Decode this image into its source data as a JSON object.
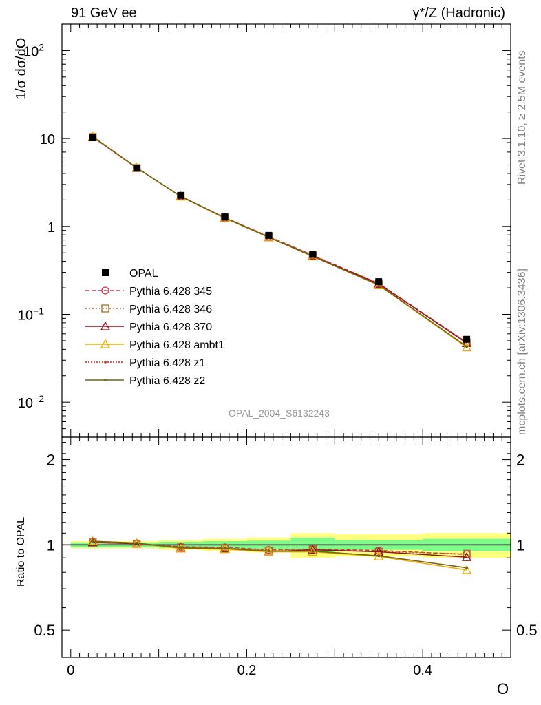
{
  "header": {
    "left": "91 GeV ee",
    "right": "γ*/Z (Hadronic)"
  },
  "side": {
    "rivet": "Rivet 3.1.10, ≥ 2.5M events",
    "mcplots": "mcplots.cern.ch [arXiv:1306.3436]"
  },
  "analysis_id": "OPAL_2004_S6132243",
  "colors": {
    "OPAL": "#000000",
    "p345": "#c8384a",
    "p346": "#a86a28",
    "p370": "#9a1020",
    "ambt1": "#f0a800",
    "z1": "#e0201a",
    "z2": "#6a6a10",
    "band_inner": "#7cfc88",
    "band_outer": "#ffff80"
  },
  "chart_data": [
    {
      "type": "line",
      "panel": "main",
      "ylabel": "1/σ dσ/dO",
      "yscale": "log",
      "ylim": [
        0.004,
        200
      ],
      "y_ticks": [
        "10^-2",
        "10^-1",
        "1",
        "10",
        "10^2"
      ],
      "x": [
        0.025,
        0.075,
        0.125,
        0.175,
        0.225,
        0.275,
        0.35,
        0.45
      ],
      "series": [
        {
          "name": "OPAL",
          "values": [
            10.2,
            4.6,
            2.25,
            1.28,
            0.79,
            0.48,
            0.235,
            0.052
          ]
        },
        {
          "name": "Pythia 6.428 345",
          "values": [
            10.4,
            4.62,
            2.2,
            1.26,
            0.77,
            0.47,
            0.225,
            0.048
          ]
        },
        {
          "name": "Pythia 6.428 346",
          "values": [
            10.4,
            4.62,
            2.2,
            1.26,
            0.76,
            0.465,
            0.22,
            0.048
          ]
        },
        {
          "name": "Pythia 6.428 370",
          "values": [
            10.4,
            4.62,
            2.2,
            1.25,
            0.75,
            0.46,
            0.222,
            0.047
          ]
        },
        {
          "name": "Pythia 6.428 ambt1",
          "values": [
            10.5,
            4.65,
            2.18,
            1.24,
            0.75,
            0.455,
            0.214,
            0.042
          ]
        },
        {
          "name": "Pythia 6.428 z1",
          "values": [
            10.5,
            4.65,
            2.19,
            1.25,
            0.755,
            0.456,
            0.215,
            0.043
          ]
        },
        {
          "name": "Pythia 6.428 z2",
          "values": [
            10.5,
            4.65,
            2.19,
            1.25,
            0.755,
            0.456,
            0.216,
            0.043
          ]
        }
      ]
    },
    {
      "type": "line",
      "panel": "ratio",
      "ylabel": "Ratio to OPAL",
      "xlabel": "O",
      "xlim": [
        -0.01,
        0.5
      ],
      "x_ticks": [
        "0",
        "0.2",
        "0.4"
      ],
      "yscale": "log",
      "ylim": [
        0.4,
        2.4
      ],
      "y_ticks": [
        "0.5",
        "1",
        "2"
      ],
      "bands": {
        "edges": [
          0.0,
          0.05,
          0.1,
          0.15,
          0.2,
          0.25,
          0.3,
          0.4,
          0.5
        ],
        "inner": [
          0.02,
          0.02,
          0.025,
          0.03,
          0.035,
          0.06,
          0.04,
          0.05
        ],
        "outer": [
          0.03,
          0.03,
          0.04,
          0.05,
          0.06,
          0.1,
          0.09,
          0.1
        ]
      },
      "x": [
        0.025,
        0.075,
        0.125,
        0.175,
        0.225,
        0.275,
        0.35,
        0.45
      ],
      "series": [
        {
          "name": "Pythia 6.428 345",
          "values": [
            1.02,
            1.01,
            0.985,
            0.98,
            0.96,
            0.965,
            0.955,
            0.925
          ]
        },
        {
          "name": "Pythia 6.428 346",
          "values": [
            1.02,
            1.01,
            0.98,
            0.975,
            0.955,
            0.965,
            0.945,
            0.93
          ]
        },
        {
          "name": "Pythia 6.428 370",
          "values": [
            1.02,
            1.01,
            0.975,
            0.97,
            0.945,
            0.96,
            0.945,
            0.905
          ]
        },
        {
          "name": "Pythia 6.428 ambt1",
          "values": [
            1.03,
            1.015,
            0.97,
            0.965,
            0.945,
            0.945,
            0.91,
            0.815
          ]
        },
        {
          "name": "Pythia 6.428 z1",
          "values": [
            1.03,
            1.015,
            0.975,
            0.97,
            0.95,
            0.95,
            0.915,
            0.83
          ]
        },
        {
          "name": "Pythia 6.428 z2",
          "values": [
            1.03,
            1.015,
            0.975,
            0.97,
            0.95,
            0.95,
            0.915,
            0.83
          ]
        }
      ]
    }
  ]
}
